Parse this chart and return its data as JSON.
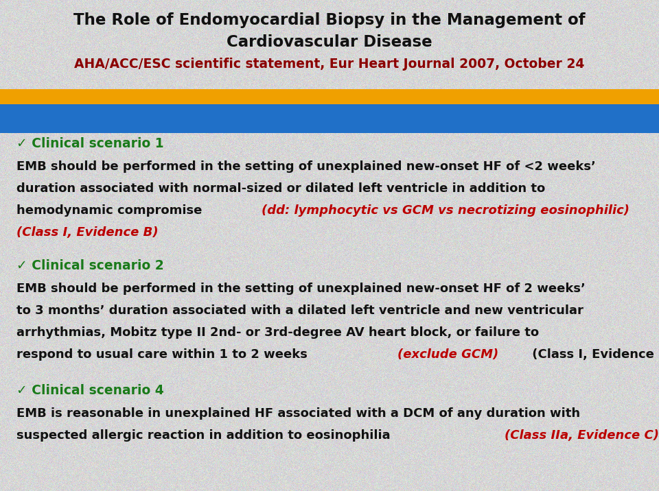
{
  "title_line1": "The Role of Endomyocardial Biopsy in the Management of",
  "title_line2": "Cardiovascular Disease",
  "subtitle": "AHA/ACC/ESC scientific statement, Eur Heart Journal 2007, October 24",
  "bg_color": "#d8d8d8",
  "title_color": "#111111",
  "subtitle_color": "#8b0000",
  "banner_orange_color": "#f0a000",
  "banner_blue_color": "#2070c8",
  "green_color": "#1a7a1a",
  "red_color": "#bb0000",
  "black_color": "#111111",
  "scenario1_header": "✓ Clinical scenario 1",
  "scenario1_text1": "EMB should be performed in the setting of unexplained new-onset HF of <2 weeks’",
  "scenario1_text2": "duration associated with normal-sized or dilated left ventricle in addition to",
  "scenario1_text3_pre": "hemodynamic compromise ",
  "scenario1_text3_italic": "(dd: lymphocytic vs GCM vs necrotizing eosinophilic)",
  "scenario1_text4": "(Class I, Evidence B)",
  "scenario2_header": "✓ Clinical scenario 2",
  "scenario2_text1": "EMB should be performed in the setting of unexplained new-onset HF of 2 weeks’",
  "scenario2_text2": "to 3 months’ duration associated with a dilated left ventricle and new ventricular",
  "scenario2_text3": "arrhythmias, Mobitz type II 2nd- or 3rd-degree AV heart block, or failure to",
  "scenario2_text4_pre": "respond to usual care within 1 to 2 weeks ",
  "scenario2_text4_italic": "(exclude GCM)",
  "scenario2_text4_post": " (Class I, Evidence B)",
  "scenario4_header": "✓ Clinical scenario 4",
  "scenario4_text1": "EMB is reasonable in unexplained HF associated with a DCM of any duration with",
  "scenario4_text2_pre": "suspected allergic reaction in addition to eosinophilia ",
  "scenario4_text2_italic": "(Class IIa, Evidence C)"
}
